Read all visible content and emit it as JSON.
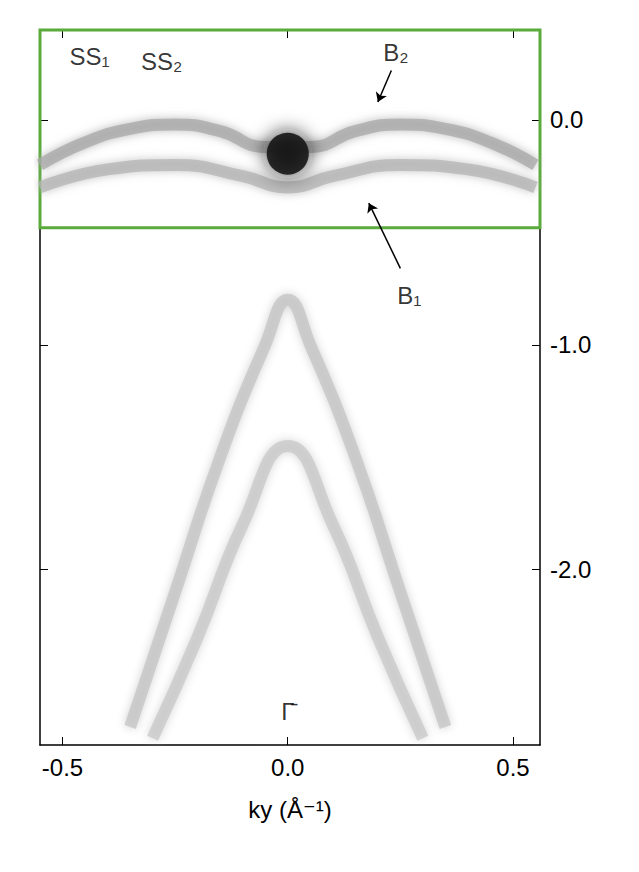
{
  "chart_data": {
    "type": "line",
    "xlabel": "ky (Å⁻¹)",
    "xlim": [
      -0.55,
      0.56
    ],
    "xticks": [
      {
        "value": -0.5,
        "label": "-0.5"
      },
      {
        "value": 0,
        "label": "0.0"
      },
      {
        "value": 0.5,
        "label": "0.5"
      }
    ],
    "ylim": [
      -2.78,
      0.4
    ],
    "yticks": [
      {
        "value": -2,
        "label": "-2.0"
      },
      {
        "value": -1,
        "label": "-1.0"
      },
      {
        "value": 0,
        "label": "0.0"
      }
    ],
    "grid": false,
    "series": [
      {
        "type": "line",
        "color": "#c4c4c4",
        "x": [
          -0.35,
          -0.25,
          -0.15,
          -0.05,
          0,
          0.05,
          0.15,
          0.25,
          0.35
        ],
        "values": [
          -2.7,
          -2.1,
          -1.5,
          -1.0,
          -0.8,
          -1.0,
          -1.5,
          -2.1,
          -2.7
        ]
      },
      {
        "type": "line",
        "color": "#c8c8c8",
        "x": [
          -0.3,
          -0.2,
          -0.1,
          0,
          0.1,
          0.2,
          0.3
        ],
        "values": [
          -2.75,
          -2.3,
          -1.8,
          -1.45,
          -1.8,
          -2.3,
          -2.75
        ]
      },
      {
        "type": "line",
        "color": "#a8a8a8",
        "x": [
          -0.55,
          -0.45,
          -0.35,
          -0.25,
          -0.15,
          -0.05,
          0.05,
          0.15,
          0.25,
          0.35,
          0.45,
          0.55
        ],
        "values": [
          -0.2,
          -0.1,
          -0.04,
          -0.02,
          -0.05,
          -0.12,
          -0.12,
          -0.05,
          -0.02,
          -0.04,
          -0.1,
          -0.2
        ]
      },
      {
        "type": "line",
        "color": "#b4b4b4",
        "x": [
          -0.55,
          -0.4,
          -0.25,
          -0.1,
          0,
          0.1,
          0.25,
          0.4,
          0.55
        ],
        "values": [
          -0.3,
          -0.22,
          -0.2,
          -0.25,
          -0.3,
          -0.25,
          -0.2,
          -0.22,
          -0.3
        ]
      },
      {
        "type": "scatter",
        "color": "#151515",
        "x": [
          0
        ],
        "values": [
          -0.15
        ]
      }
    ],
    "box": {
      "xlim": [
        -0.55,
        0.56
      ],
      "ylim": [
        -0.48,
        0.4
      ],
      "color": "#5aaa3c"
    },
    "annotations": [
      {
        "text": "SS₁",
        "x": -0.44,
        "y": 0.28
      },
      {
        "text": "SS₂",
        "x": -0.28,
        "y": 0.26
      },
      {
        "text": "B₂",
        "x": 0.24,
        "y": 0.3,
        "arrow": [
          [
            0.23,
            0.22
          ],
          [
            0.2,
            0.08
          ]
        ]
      },
      {
        "text": "B₁",
        "x": 0.27,
        "y": -0.78,
        "arrow": [
          [
            0.25,
            -0.66
          ],
          [
            0.18,
            -0.37
          ]
        ]
      },
      {
        "text": "Γ̄",
        "x": 0,
        "y": -2.63
      }
    ]
  }
}
